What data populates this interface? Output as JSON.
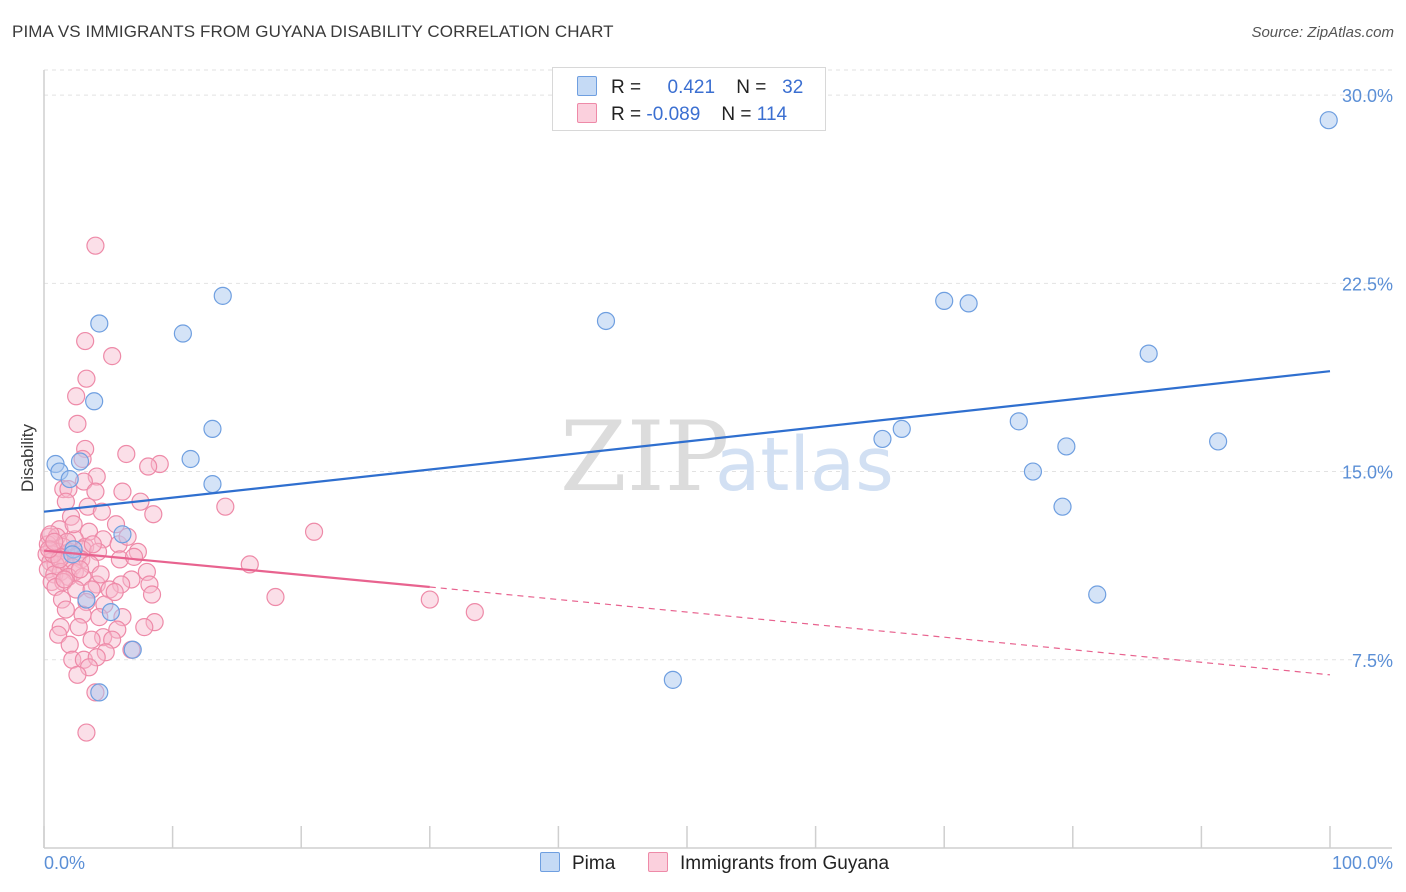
{
  "header": {
    "title": "PIMA VS IMMIGRANTS FROM GUYANA DISABILITY CORRELATION CHART",
    "source": "Source: ZipAtlas.com"
  },
  "legend": {
    "pima": {
      "r_label": "R =",
      "r_value": "0.421",
      "n_label": "N =",
      "n_value": "32"
    },
    "guyana": {
      "r_label": "R =",
      "r_value": "-0.089",
      "n_label": "N =",
      "n_value": "114"
    }
  },
  "bottom_legend": {
    "pima": "Pima",
    "guyana": "Immigrants from Guyana"
  },
  "watermark": {
    "zip": "ZIP",
    "atlas": "atlas"
  },
  "colors": {
    "pima_fill": "#aac8f0",
    "pima_stroke": "#6f9fe0",
    "pima_line": "#2f6fcf",
    "guyana_fill": "#f7b8cb",
    "guyana_stroke": "#ee8aa8",
    "guyana_line": "#e8638f",
    "tick_text": "#5b8fd6",
    "grid": "#e2e2e2"
  },
  "chart_data": {
    "type": "scatter",
    "title": "PIMA VS IMMIGRANTS FROM GUYANA DISABILITY CORRELATION CHART",
    "xlabel": "",
    "ylabel": "Disability",
    "xlim": [
      0,
      100
    ],
    "ylim": [
      0,
      31
    ],
    "x_tick_labels": [
      "0.0%",
      "100.0%"
    ],
    "y_ticks": [
      {
        "value": 7.5,
        "label": "7.5%"
      },
      {
        "value": 15.0,
        "label": "15.0%"
      },
      {
        "value": 22.5,
        "label": "22.5%"
      },
      {
        "value": 30.0,
        "label": "30.0%"
      }
    ],
    "series": [
      {
        "name": "Pima",
        "points": [
          [
            99.9,
            29.0
          ],
          [
            13.9,
            22.0
          ],
          [
            43.7,
            21.0
          ],
          [
            70.0,
            21.8
          ],
          [
            71.9,
            21.7
          ],
          [
            85.9,
            19.7
          ],
          [
            4.3,
            20.9
          ],
          [
            10.8,
            20.5
          ],
          [
            3.9,
            17.8
          ],
          [
            13.1,
            16.7
          ],
          [
            75.8,
            17.0
          ],
          [
            66.7,
            16.7
          ],
          [
            65.2,
            16.3
          ],
          [
            79.5,
            16.0
          ],
          [
            76.9,
            15.0
          ],
          [
            91.3,
            16.2
          ],
          [
            11.4,
            15.5
          ],
          [
            2.8,
            15.4
          ],
          [
            0.9,
            15.3
          ],
          [
            1.2,
            15.0
          ],
          [
            2.0,
            14.7
          ],
          [
            13.1,
            14.5
          ],
          [
            79.2,
            13.6
          ],
          [
            6.1,
            12.5
          ],
          [
            2.3,
            11.9
          ],
          [
            81.9,
            10.1
          ],
          [
            3.3,
            9.9
          ],
          [
            5.2,
            9.4
          ],
          [
            6.9,
            7.9
          ],
          [
            4.3,
            6.2
          ],
          [
            48.9,
            6.7
          ],
          [
            2.2,
            11.7
          ]
        ],
        "trend": {
          "x0": 0,
          "y0": 13.4,
          "x1": 100,
          "y1": 19.0
        }
      },
      {
        "name": "Immigrants from Guyana",
        "points": [
          [
            4.0,
            24.0
          ],
          [
            5.3,
            19.6
          ],
          [
            3.2,
            20.2
          ],
          [
            3.3,
            18.7
          ],
          [
            2.5,
            18.0
          ],
          [
            2.6,
            16.9
          ],
          [
            3.2,
            15.9
          ],
          [
            6.4,
            15.7
          ],
          [
            3.0,
            15.5
          ],
          [
            9.0,
            15.3
          ],
          [
            8.1,
            15.2
          ],
          [
            4.1,
            14.8
          ],
          [
            1.5,
            14.3
          ],
          [
            3.1,
            14.6
          ],
          [
            4.0,
            14.2
          ],
          [
            1.9,
            14.3
          ],
          [
            6.1,
            14.2
          ],
          [
            1.7,
            13.8
          ],
          [
            7.5,
            13.8
          ],
          [
            3.4,
            13.6
          ],
          [
            4.5,
            13.4
          ],
          [
            2.1,
            13.2
          ],
          [
            8.5,
            13.3
          ],
          [
            14.1,
            13.6
          ],
          [
            5.6,
            12.9
          ],
          [
            1.2,
            12.7
          ],
          [
            3.5,
            12.6
          ],
          [
            21.0,
            12.6
          ],
          [
            0.4,
            12.4
          ],
          [
            1.0,
            12.4
          ],
          [
            2.4,
            12.3
          ],
          [
            4.6,
            12.3
          ],
          [
            0.3,
            12.1
          ],
          [
            1.5,
            12.0
          ],
          [
            3.2,
            12.0
          ],
          [
            5.8,
            12.1
          ],
          [
            0.6,
            11.9
          ],
          [
            1.1,
            11.8
          ],
          [
            2.0,
            11.8
          ],
          [
            3.0,
            11.9
          ],
          [
            4.2,
            11.8
          ],
          [
            7.3,
            11.8
          ],
          [
            0.2,
            11.7
          ],
          [
            1.4,
            11.6
          ],
          [
            2.6,
            11.6
          ],
          [
            5.9,
            11.5
          ],
          [
            0.5,
            11.4
          ],
          [
            1.7,
            11.4
          ],
          [
            2.9,
            11.5
          ],
          [
            0.9,
            11.3
          ],
          [
            2.2,
            11.2
          ],
          [
            3.6,
            11.3
          ],
          [
            16.0,
            11.3
          ],
          [
            0.3,
            11.1
          ],
          [
            1.3,
            11.0
          ],
          [
            2.4,
            11.0
          ],
          [
            8.0,
            11.0
          ],
          [
            0.8,
            10.9
          ],
          [
            1.9,
            10.8
          ],
          [
            3.0,
            10.8
          ],
          [
            6.8,
            10.7
          ],
          [
            0.6,
            10.6
          ],
          [
            1.5,
            10.6
          ],
          [
            4.1,
            10.5
          ],
          [
            6.0,
            10.5
          ],
          [
            8.2,
            10.5
          ],
          [
            0.9,
            10.4
          ],
          [
            2.5,
            10.3
          ],
          [
            3.7,
            10.3
          ],
          [
            5.1,
            10.3
          ],
          [
            8.4,
            10.1
          ],
          [
            18.0,
            10.0
          ],
          [
            30.0,
            9.9
          ],
          [
            1.4,
            9.9
          ],
          [
            3.3,
            9.8
          ],
          [
            4.7,
            9.7
          ],
          [
            1.7,
            9.5
          ],
          [
            3.0,
            9.3
          ],
          [
            4.3,
            9.2
          ],
          [
            6.1,
            9.2
          ],
          [
            33.5,
            9.4
          ],
          [
            8.6,
            9.0
          ],
          [
            1.3,
            8.8
          ],
          [
            2.7,
            8.8
          ],
          [
            5.7,
            8.7
          ],
          [
            7.8,
            8.8
          ],
          [
            1.1,
            8.5
          ],
          [
            4.6,
            8.4
          ],
          [
            3.7,
            8.3
          ],
          [
            5.3,
            8.3
          ],
          [
            2.0,
            8.1
          ],
          [
            6.8,
            7.9
          ],
          [
            4.8,
            7.8
          ],
          [
            2.2,
            7.5
          ],
          [
            3.1,
            7.5
          ],
          [
            4.1,
            7.6
          ],
          [
            3.5,
            7.2
          ],
          [
            2.6,
            6.9
          ],
          [
            4.0,
            6.2
          ],
          [
            3.3,
            4.6
          ],
          [
            0.5,
            12.5
          ],
          [
            1.8,
            12.2
          ],
          [
            0.7,
            11.7
          ],
          [
            1.2,
            11.5
          ],
          [
            0.4,
            11.9
          ],
          [
            2.8,
            11.1
          ],
          [
            1.6,
            10.7
          ],
          [
            5.5,
            10.2
          ],
          [
            7.0,
            11.6
          ],
          [
            4.4,
            10.9
          ],
          [
            2.3,
            12.9
          ],
          [
            3.8,
            12.1
          ],
          [
            6.5,
            12.4
          ],
          [
            0.8,
            12.2
          ]
        ],
        "trend": {
          "x0": 0,
          "y0": 11.85,
          "x1": 30,
          "y1": 10.4
        },
        "trend_extension": {
          "x0": 30,
          "y0": 10.4,
          "x1": 100,
          "y1": 6.9
        }
      }
    ]
  }
}
